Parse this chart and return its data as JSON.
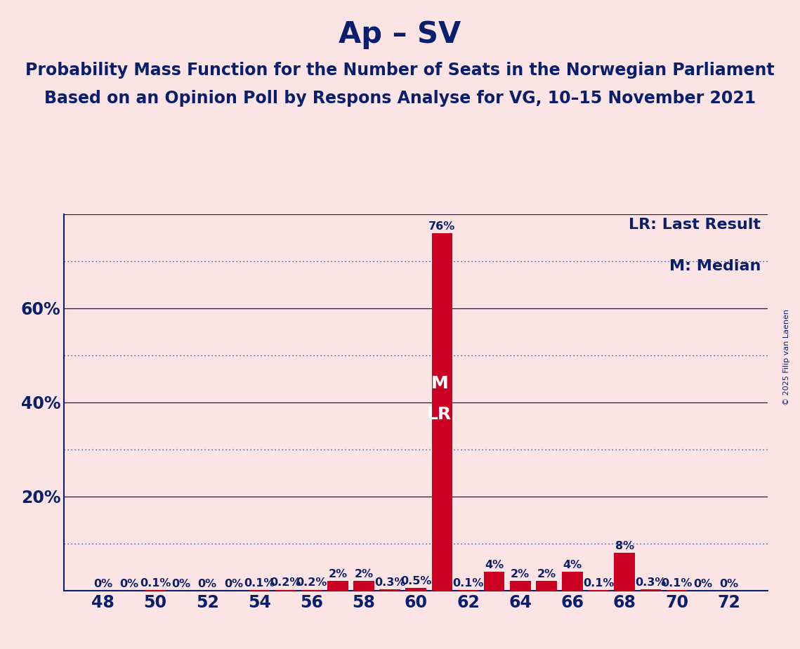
{
  "title": "Ap – SV",
  "subtitle1": "Probability Mass Function for the Number of Seats in the Norwegian Parliament",
  "subtitle2": "Based on an Opinion Poll by Respons Analyse for VG, 10–15 November 2021",
  "copyright": "© 2025 Filip van Laenen",
  "legend_lr": "LR: Last Result",
  "legend_m": "M: Median",
  "background_color": "#fce4e4",
  "bar_color": "#cc0022",
  "axis_color": "#0a1f6b",
  "seats": [
    48,
    49,
    50,
    51,
    52,
    53,
    54,
    55,
    56,
    57,
    58,
    59,
    60,
    61,
    62,
    63,
    64,
    65,
    66,
    67,
    68,
    69,
    70,
    71,
    72
  ],
  "probs": [
    0.0,
    0.0,
    0.001,
    0.0,
    0.0,
    0.0,
    0.001,
    0.002,
    0.002,
    0.02,
    0.02,
    0.003,
    0.005,
    0.76,
    0.001,
    0.04,
    0.02,
    0.02,
    0.04,
    0.001,
    0.08,
    0.003,
    0.001,
    0.0,
    0.0
  ],
  "prob_labels": [
    "0%",
    "0%",
    "0.1%",
    "0%",
    "0%",
    "0%",
    "0.1%",
    "0.2%",
    "0.2%",
    "2%",
    "2%",
    "0.3%",
    "0.5%",
    "76%",
    "0.1%",
    "4%",
    "2%",
    "2%",
    "4%",
    "0.1%",
    "8%",
    "0.3%",
    "0.1%",
    "0%",
    "0%"
  ],
  "median_seat": 61,
  "lr_seat": 61,
  "ylim_max": 0.8,
  "solid_gridlines": [
    0.2,
    0.4,
    0.6,
    0.8
  ],
  "dotted_gridlines": [
    0.1,
    0.3,
    0.5,
    0.7
  ],
  "ytick_positions": [
    0.2,
    0.4,
    0.6
  ],
  "ytick_labels": [
    "20%",
    "40%",
    "60%"
  ],
  "xticks": [
    48,
    50,
    52,
    54,
    56,
    58,
    60,
    62,
    64,
    66,
    68,
    70,
    72
  ],
  "title_fontsize": 30,
  "subtitle_fontsize": 17,
  "axis_label_fontsize": 17,
  "bar_label_fontsize": 11.5,
  "legend_fontsize": 16,
  "marker_fontsize": 18
}
